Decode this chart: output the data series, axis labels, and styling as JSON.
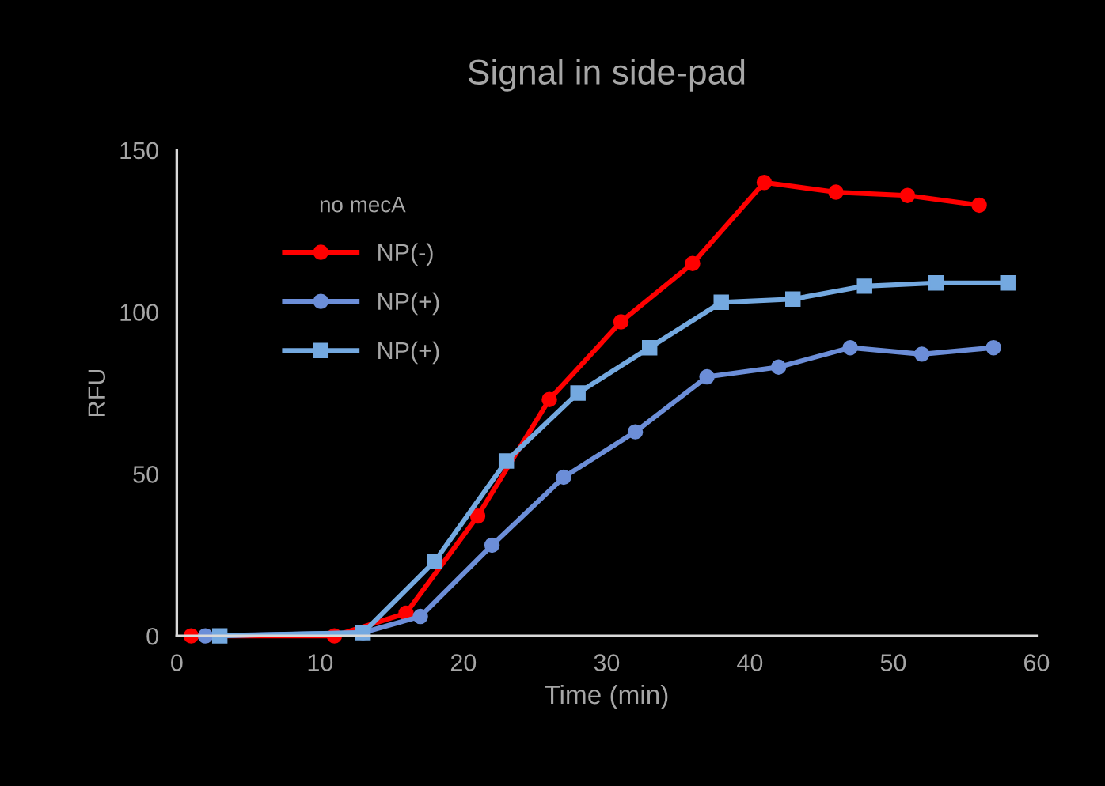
{
  "chart_data": {
    "type": "line",
    "title": "Signal in side-pad",
    "xlabel": "Time (min)",
    "ylabel": "RFU",
    "legend_title": "no mecA",
    "series": [
      {
        "name": "NP(-)",
        "color": "#ff0000",
        "marker": "circle",
        "x": [
          1,
          11,
          16,
          21,
          26,
          31,
          36,
          41,
          46,
          51,
          56
        ],
        "values": [
          0,
          0,
          7,
          37,
          73,
          97,
          115,
          140,
          137,
          136,
          133
        ]
      },
      {
        "name": "NP(+)",
        "color": "#6c8ed8",
        "marker": "circle",
        "x": [
          2,
          13,
          17,
          22,
          27,
          32,
          37,
          42,
          47,
          52,
          57
        ],
        "values": [
          0,
          1,
          6,
          28,
          49,
          63,
          80,
          83,
          89,
          87,
          89
        ]
      },
      {
        "name": "NP(+)",
        "color": "#74a9e0",
        "marker": "square",
        "x": [
          3,
          13,
          18,
          23,
          28,
          33,
          38,
          43,
          48,
          53,
          58
        ],
        "values": [
          0,
          1,
          23,
          54,
          75,
          89,
          103,
          104,
          108,
          109,
          109
        ]
      }
    ],
    "xlim": [
      0,
      60
    ],
    "xticks": [
      0,
      10,
      20,
      30,
      40,
      50,
      60
    ],
    "ylim": [
      0,
      150
    ],
    "yticks": [
      0,
      50,
      100,
      150
    ],
    "grid": false,
    "legend": "top left",
    "line_style": "solid"
  }
}
